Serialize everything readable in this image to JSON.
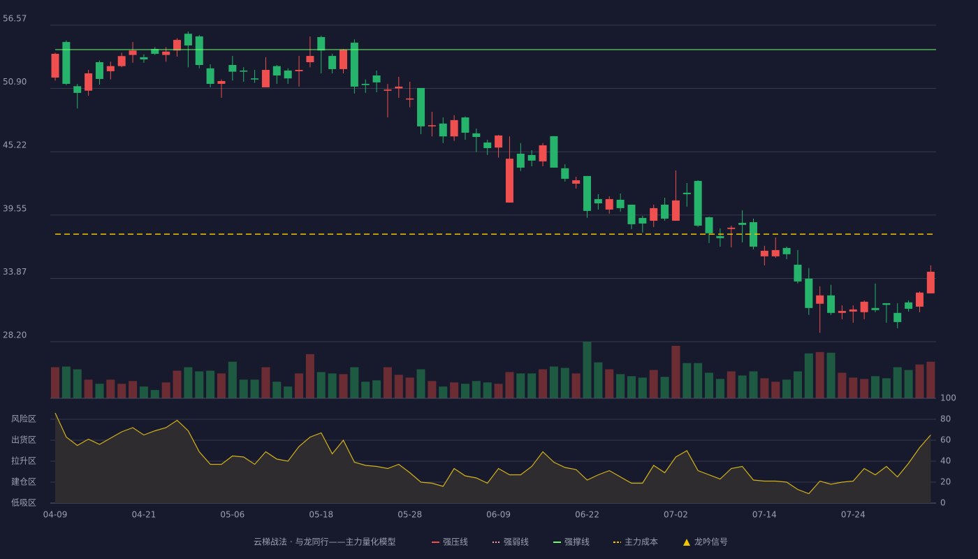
{
  "chart_data": [
    {
      "type": "candlestick",
      "up_color": "#ef4f4f",
      "down_color": "#26b36b",
      "categories": [
        "04-09",
        null,
        null,
        null,
        null,
        null,
        null,
        null,
        "04-21",
        null,
        null,
        null,
        null,
        null,
        null,
        null,
        "05-06",
        null,
        null,
        null,
        null,
        null,
        null,
        null,
        "05-18",
        null,
        null,
        null,
        null,
        null,
        null,
        null,
        "05-28",
        null,
        null,
        null,
        null,
        null,
        null,
        null,
        "06-09",
        null,
        null,
        null,
        null,
        null,
        null,
        null,
        "06-22",
        null,
        null,
        null,
        null,
        null,
        null,
        null,
        "07-02",
        null,
        null,
        null,
        null,
        null,
        null,
        null,
        "07-14",
        null,
        null,
        null,
        null,
        null,
        null,
        null,
        "07-24",
        null,
        null,
        null,
        null,
        null,
        null,
        null
      ],
      "open": [
        51.87,
        55.06,
        51.1,
        50.7,
        53.25,
        52.44,
        52.9,
        53.9,
        53.7,
        54.44,
        53.9,
        54.3,
        55.8,
        55.56,
        52.7,
        51.31,
        53.0,
        52.5,
        51.8,
        51.0,
        52.9,
        52.5,
        52.44,
        53.25,
        55.5,
        53.81,
        52.63,
        55.0,
        51.31,
        52.06,
        50.69,
        50.9,
        49.9,
        50.94,
        47.5,
        47.75,
        46.6,
        48.3,
        46.87,
        46.05,
        45.6,
        40.67,
        45.05,
        44.93,
        44.36,
        46.62,
        43.74,
        42.36,
        43.05,
        40.98,
        40.04,
        40.92,
        40.48,
        39.29,
        39.04,
        40.48,
        39.04,
        41.55,
        42.61,
        39.35,
        37.67,
        38.3,
        38.85,
        38.91,
        35.85,
        35.85,
        36.6,
        35.1,
        33.85,
        31.6,
        32.35,
        30.78,
        30.9,
        30.84,
        31.22,
        31.65,
        30.78,
        31.72,
        31.34,
        32.53
      ],
      "high": [
        54.1,
        55.2,
        51.3,
        52.56,
        53.4,
        53.3,
        54.1,
        55.06,
        53.95,
        54.6,
        54.6,
        55.4,
        56.0,
        55.69,
        53.06,
        51.7,
        53.81,
        52.8,
        52.56,
        53.7,
        53.0,
        52.7,
        53.81,
        55.56,
        55.63,
        54.0,
        54.44,
        55.3,
        51.7,
        52.5,
        51.3,
        51.94,
        51.5,
        50.94,
        48.8,
        48.3,
        48.5,
        48.4,
        47.3,
        46.3,
        46.74,
        46.6,
        46.0,
        45.36,
        46.0,
        46.62,
        44.1,
        42.98,
        43.05,
        41.42,
        41.23,
        41.48,
        40.48,
        39.48,
        40.48,
        41.1,
        43.55,
        42.42,
        42.67,
        39.42,
        38.35,
        38.6,
        39.98,
        39.23,
        36.79,
        37.54,
        36.72,
        36.41,
        34.79,
        33.16,
        33.29,
        31.46,
        31.46,
        31.9,
        33.41,
        31.65,
        31.65,
        31.9,
        32.7,
        35.04
      ],
      "low": [
        51.6,
        51.2,
        49.1,
        50.25,
        51.25,
        51.7,
        52.8,
        53.2,
        53.2,
        53.9,
        53.3,
        53.75,
        52.8,
        52.7,
        51.0,
        50.06,
        51.6,
        51.5,
        51.4,
        51.0,
        51.31,
        51.31,
        51.06,
        52.8,
        52.25,
        52.25,
        52.25,
        50.44,
        50.5,
        50.56,
        48.3,
        50.06,
        49.2,
        46.8,
        46.6,
        46.0,
        46.2,
        46.3,
        45.2,
        44.93,
        44.7,
        40.67,
        43.5,
        43.92,
        43.92,
        43.8,
        42.55,
        41.92,
        39.3,
        40.04,
        39.67,
        39.86,
        38.29,
        37.98,
        38.48,
        39.04,
        39.04,
        40.3,
        38.48,
        37.04,
        36.72,
        36.66,
        37.1,
        36.47,
        35.04,
        35.72,
        35.6,
        33.42,
        30.6,
        29.0,
        30.6,
        30.21,
        29.9,
        30.21,
        30.84,
        29.9,
        29.4,
        30.9,
        30.84,
        32.53
      ],
      "close": [
        54.0,
        51.31,
        50.5,
        52.25,
        51.75,
        52.9,
        53.8,
        54.3,
        53.5,
        54.0,
        54.2,
        55.25,
        54.75,
        53.0,
        51.31,
        51.56,
        52.4,
        52.4,
        51.7,
        52.56,
        52.06,
        51.8,
        52.56,
        53.81,
        54.3,
        52.63,
        54.4,
        51.06,
        51.2,
        51.44,
        50.8,
        51.06,
        50.0,
        47.5,
        47.6,
        46.6,
        48.06,
        46.93,
        46.55,
        45.55,
        46.68,
        44.6,
        43.8,
        44.43,
        45.8,
        43.8,
        42.8,
        42.67,
        39.92,
        40.6,
        40.98,
        40.17,
        38.73,
        38.79,
        40.17,
        39.23,
        40.86,
        41.42,
        38.6,
        37.92,
        37.48,
        38.42,
        38.67,
        36.72,
        36.35,
        36.41,
        36.04,
        33.6,
        31.22,
        32.35,
        30.78,
        30.96,
        31.09,
        31.78,
        31.03,
        31.5,
        29.96,
        31.15,
        32.6,
        34.47
      ],
      "ylim": [
        28.2,
        56.57
      ],
      "yticks": [
        56.57,
        {
          "value": 50.9,
          "label": "50.90"
        },
        45.22,
        39.55,
        33.87,
        {
          "value": 28.2,
          "label": "28.20"
        }
      ],
      "grid": true,
      "legend_title": "云梯战法 · 与龙同行——主力量化模型",
      "legend": [
        {
          "name": "强压线",
          "color": "#ef4f4f",
          "style": "solid"
        },
        {
          "name": "强弱线",
          "color": "#ff9aa8",
          "style": "dotted"
        },
        {
          "name": "强撑线",
          "color": "#6cff6c",
          "style": "solid",
          "value": 54.38
        },
        {
          "name": "主力成本",
          "color": "#f2c500",
          "style": "dashed",
          "value": 37.84
        },
        {
          "name": "龙吟信号",
          "color": "#f2c500",
          "style": "triangle"
        }
      ]
    },
    {
      "type": "bar",
      "up_color": "#6b2c33",
      "down_color": "#1e5a42",
      "values": [
        45,
        46,
        42,
        27,
        21,
        27,
        21,
        25,
        17,
        12,
        23,
        40,
        45,
        39,
        40,
        36,
        53,
        27,
        27,
        45,
        24,
        17,
        36,
        64,
        38,
        36,
        35,
        45,
        24,
        26,
        45,
        34,
        30,
        42,
        25,
        17,
        23,
        21,
        25,
        23,
        21,
        38,
        36,
        36,
        42,
        46,
        44,
        36,
        82,
        52,
        42,
        35,
        32,
        30,
        41,
        31,
        76,
        51,
        51,
        37,
        28,
        39,
        33,
        39,
        29,
        24,
        27,
        39,
        65,
        67,
        66,
        37,
        30,
        28,
        32,
        29,
        45,
        41,
        49,
        53
      ]
    },
    {
      "type": "line",
      "color": "#d4b21a",
      "values": [
        86,
        63,
        55,
        61,
        56,
        62,
        68,
        72,
        65,
        69,
        72,
        79,
        69,
        49,
        37,
        37,
        45,
        44,
        37,
        49,
        42,
        40,
        54,
        63,
        67,
        47,
        60,
        39,
        36,
        35,
        33,
        37,
        29,
        20,
        19,
        16,
        33,
        26,
        24,
        19,
        33,
        27,
        27,
        35,
        49,
        39,
        34,
        32,
        22,
        27,
        31,
        25,
        19,
        19,
        36,
        29,
        44,
        50,
        31,
        27,
        23,
        33,
        35,
        22,
        21,
        21,
        20,
        13,
        9,
        21,
        18,
        20,
        21,
        33,
        27,
        35,
        25,
        38,
        53,
        65
      ],
      "ylim": [
        0,
        100
      ],
      "yticks": [
        100,
        80,
        60,
        40,
        20,
        0
      ],
      "ytick_colors": [
        "#4cd964",
        "#e8a23a",
        "#e040e0",
        "#4a9cf0",
        "#e8a23a",
        "#ef4f4f"
      ],
      "grid": true,
      "zones": [
        {
          "label": "风险区",
          "value": 80,
          "color": "#e8a23a"
        },
        {
          "label": "出货区",
          "value": 60,
          "color": "#e040e0"
        },
        {
          "label": "拉升区",
          "value": 40,
          "color": "#4a9cf0"
        },
        {
          "label": "建仓区",
          "value": 20,
          "color": "#ef5a4f"
        },
        {
          "label": "低吸区",
          "value": 0,
          "color": "#ef4f4f"
        }
      ]
    }
  ]
}
